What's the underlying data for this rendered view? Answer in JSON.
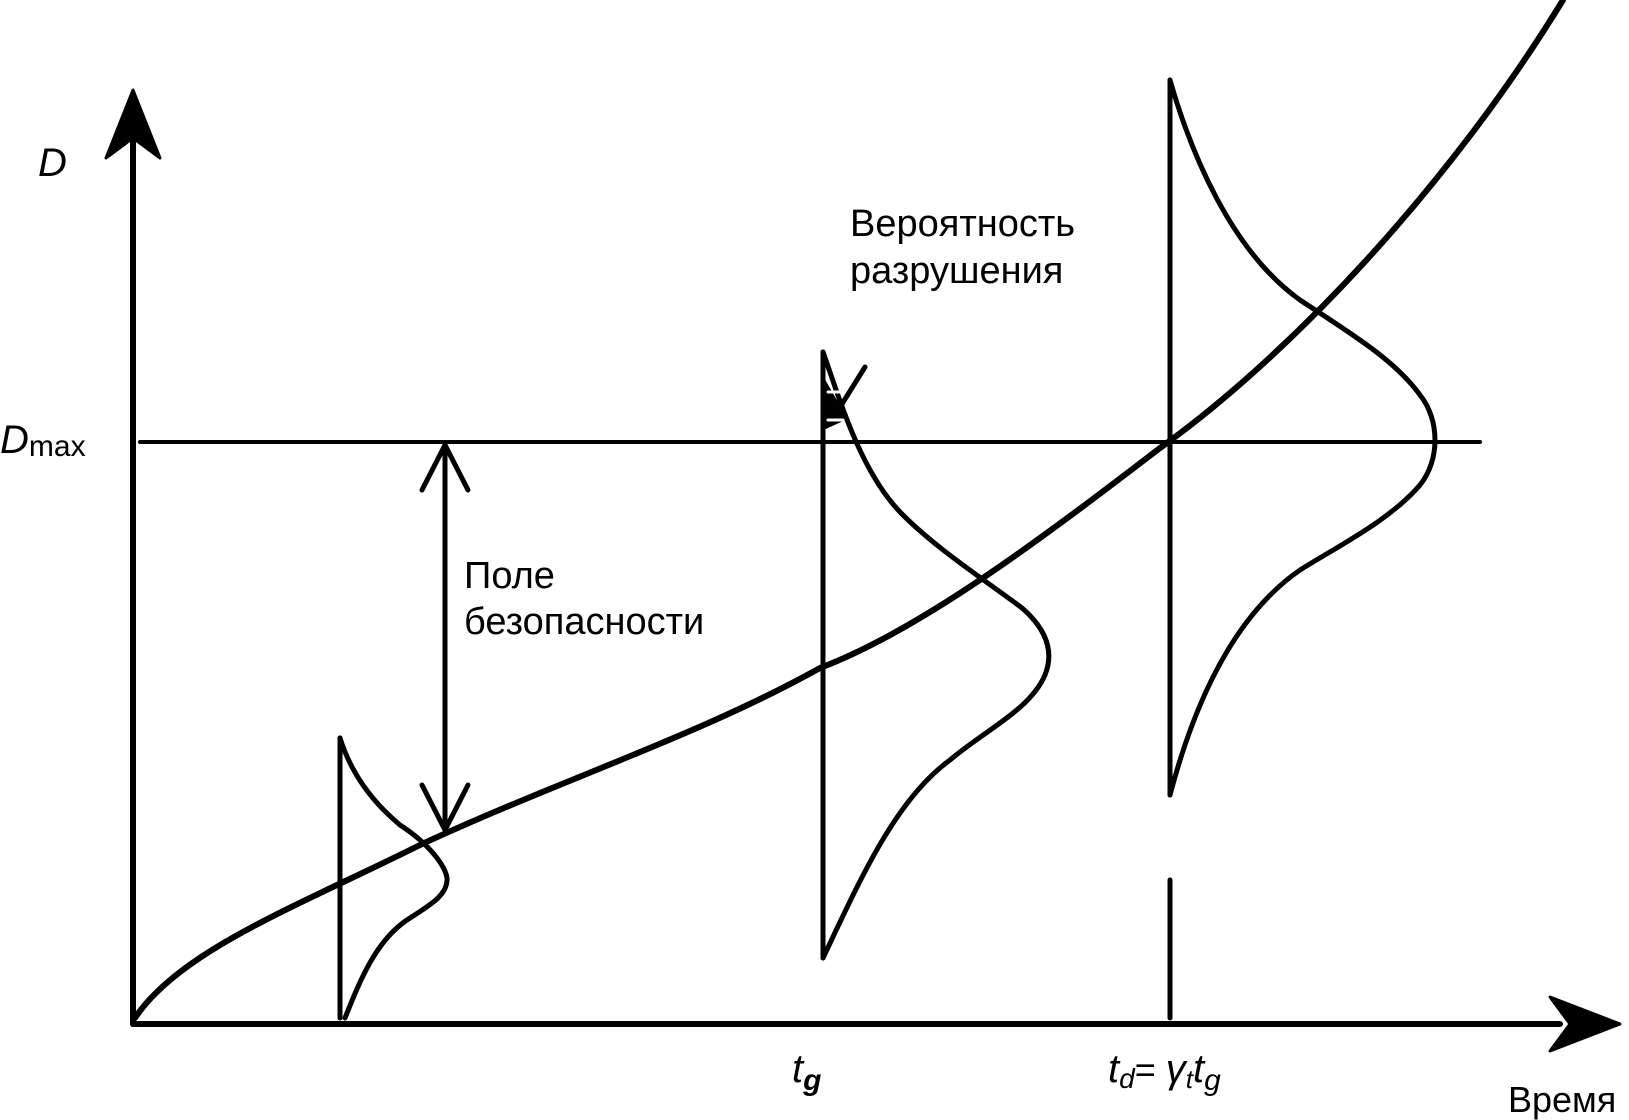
{
  "axes": {
    "y_label": "D",
    "dmax_label_main": "D",
    "dmax_label_sub": "max",
    "x_label": "Время"
  },
  "annotations": {
    "failure_probability_line1": "Вероятность",
    "failure_probability_line2": "разрушения",
    "safety_margin_line1": "Поле",
    "safety_margin_line2": "безопасности"
  },
  "ticks": {
    "tg_main": "t",
    "tg_sub": "g",
    "td_main": "t",
    "td_sub": "d",
    "td_eq": "= ",
    "td_gamma": "γ",
    "td_gamma_sub": "t",
    "td_t": "t",
    "td_t_sub": "g"
  },
  "colors": {
    "ink": "#000000",
    "background": "#ffffff"
  }
}
